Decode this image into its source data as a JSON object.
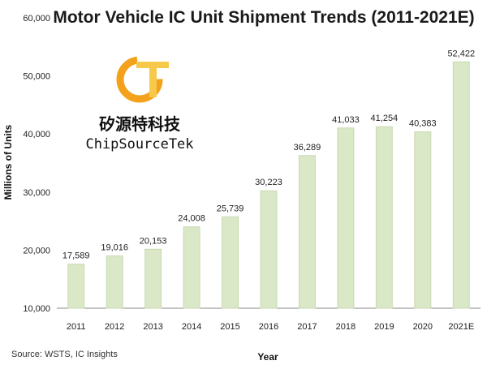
{
  "brand": {
    "logo_text": "CST",
    "name_cn": "矽源特科技",
    "name_en": "ChipSourceTek"
  },
  "source_note": "Source: WSTS,  IC Insights",
  "colors": {
    "bar_fill": "#dbe8c8",
    "bar_stroke": "#c8d9b0",
    "logo_orange": "#f4a11c",
    "logo_yellow": "#f7c94a"
  },
  "chart_data": {
    "type": "bar",
    "title": "Motor Vehicle IC Unit Shipment Trends (2011-2021E)",
    "xlabel": "Year",
    "ylabel": "Millions of Units",
    "categories": [
      "2011",
      "2012",
      "2013",
      "2014",
      "2015",
      "2016",
      "2017",
      "2018",
      "2019",
      "2020",
      "2021E"
    ],
    "values": [
      17589,
      19016,
      20153,
      24008,
      25739,
      30223,
      36289,
      41033,
      41254,
      40383,
      52422
    ],
    "value_labels": [
      "17,589",
      "19,016",
      "20,153",
      "24,008",
      "25,739",
      "30,223",
      "36,289",
      "41,033",
      "41,254",
      "40,383",
      "52,422"
    ],
    "ylim": [
      10000,
      60000
    ],
    "yticks": [
      10000,
      20000,
      30000,
      40000,
      50000,
      60000
    ],
    "ytick_labels": [
      "10,000",
      "20,000",
      "30,000",
      "40,000",
      "50,000",
      "60,000"
    ],
    "grid": false,
    "legend": "none"
  }
}
